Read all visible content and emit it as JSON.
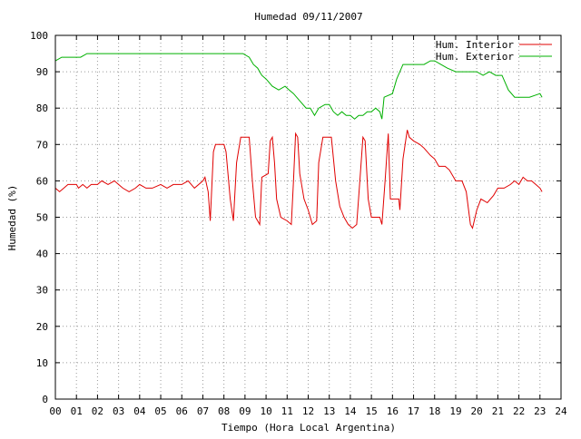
{
  "chart_data": {
    "type": "line",
    "title": "Humedad 09/11/2007",
    "xlabel": "Tiempo (Hora Local Argentina)",
    "ylabel": "Humedad (%)",
    "xlim": [
      0,
      24
    ],
    "ylim": [
      0,
      100
    ],
    "xticks": [
      "00",
      "01",
      "02",
      "03",
      "04",
      "05",
      "06",
      "07",
      "08",
      "09",
      "10",
      "11",
      "12",
      "13",
      "14",
      "15",
      "16",
      "17",
      "18",
      "19",
      "20",
      "21",
      "22",
      "23",
      "24"
    ],
    "yticks": [
      0,
      10,
      20,
      30,
      40,
      50,
      60,
      70,
      80,
      90,
      100
    ],
    "grid": true,
    "legend_position": "top-right",
    "series": [
      {
        "name": "Hum. Interior",
        "color": "#e00000",
        "points": [
          [
            0.0,
            58
          ],
          [
            0.2,
            57
          ],
          [
            0.4,
            58
          ],
          [
            0.6,
            59
          ],
          [
            0.8,
            59
          ],
          [
            1.0,
            59
          ],
          [
            1.1,
            58
          ],
          [
            1.3,
            59
          ],
          [
            1.5,
            58
          ],
          [
            1.7,
            59
          ],
          [
            2.0,
            59
          ],
          [
            2.2,
            60
          ],
          [
            2.5,
            59
          ],
          [
            2.8,
            60
          ],
          [
            3.0,
            59
          ],
          [
            3.2,
            58
          ],
          [
            3.5,
            57
          ],
          [
            3.8,
            58
          ],
          [
            4.0,
            59
          ],
          [
            4.3,
            58
          ],
          [
            4.6,
            58
          ],
          [
            5.0,
            59
          ],
          [
            5.3,
            58
          ],
          [
            5.6,
            59
          ],
          [
            6.0,
            59
          ],
          [
            6.3,
            60
          ],
          [
            6.6,
            58
          ],
          [
            7.0,
            60
          ],
          [
            7.1,
            61
          ],
          [
            7.25,
            57
          ],
          [
            7.35,
            49
          ],
          [
            7.5,
            68
          ],
          [
            7.6,
            70
          ],
          [
            8.0,
            70
          ],
          [
            8.1,
            68
          ],
          [
            8.3,
            55
          ],
          [
            8.45,
            49
          ],
          [
            8.6,
            65
          ],
          [
            8.8,
            72
          ],
          [
            9.2,
            72
          ],
          [
            9.35,
            60
          ],
          [
            9.5,
            50
          ],
          [
            9.7,
            48
          ],
          [
            9.8,
            61
          ],
          [
            10.1,
            62
          ],
          [
            10.2,
            71
          ],
          [
            10.3,
            72
          ],
          [
            10.4,
            65
          ],
          [
            10.5,
            55
          ],
          [
            10.7,
            50
          ],
          [
            11.0,
            49
          ],
          [
            11.2,
            48
          ],
          [
            11.3,
            60
          ],
          [
            11.4,
            73
          ],
          [
            11.5,
            72
          ],
          [
            11.6,
            62
          ],
          [
            11.8,
            55
          ],
          [
            12.0,
            52
          ],
          [
            12.2,
            48
          ],
          [
            12.4,
            49
          ],
          [
            12.5,
            65
          ],
          [
            12.7,
            72
          ],
          [
            13.1,
            72
          ],
          [
            13.3,
            60
          ],
          [
            13.5,
            53
          ],
          [
            13.7,
            50
          ],
          [
            13.9,
            48
          ],
          [
            14.1,
            47
          ],
          [
            14.3,
            48
          ],
          [
            14.45,
            60
          ],
          [
            14.6,
            72
          ],
          [
            14.7,
            71
          ],
          [
            14.85,
            55
          ],
          [
            15.0,
            50
          ],
          [
            15.4,
            50
          ],
          [
            15.5,
            48
          ],
          [
            15.65,
            60
          ],
          [
            15.8,
            73
          ],
          [
            15.9,
            55
          ],
          [
            16.3,
            55
          ],
          [
            16.35,
            52
          ],
          [
            16.5,
            66
          ],
          [
            16.7,
            74
          ],
          [
            16.8,
            72
          ],
          [
            17.0,
            71
          ],
          [
            17.3,
            70
          ],
          [
            17.5,
            69
          ],
          [
            17.8,
            67
          ],
          [
            18.0,
            66
          ],
          [
            18.2,
            64
          ],
          [
            18.5,
            64
          ],
          [
            18.7,
            63
          ],
          [
            19.0,
            60
          ],
          [
            19.3,
            60
          ],
          [
            19.5,
            57
          ],
          [
            19.7,
            48
          ],
          [
            19.8,
            47
          ],
          [
            20.0,
            52
          ],
          [
            20.2,
            55
          ],
          [
            20.5,
            54
          ],
          [
            20.8,
            56
          ],
          [
            21.0,
            58
          ],
          [
            21.3,
            58
          ],
          [
            21.6,
            59
          ],
          [
            21.8,
            60
          ],
          [
            22.0,
            59
          ],
          [
            22.2,
            61
          ],
          [
            22.4,
            60
          ],
          [
            22.6,
            60
          ],
          [
            22.8,
            59
          ],
          [
            23.0,
            58
          ],
          [
            23.1,
            57
          ]
        ]
      },
      {
        "name": "Hum. Exterior",
        "color": "#00b000",
        "points": [
          [
            0.0,
            93
          ],
          [
            0.3,
            94
          ],
          [
            0.6,
            94
          ],
          [
            0.9,
            94
          ],
          [
            1.2,
            94
          ],
          [
            1.5,
            95
          ],
          [
            1.8,
            95
          ],
          [
            2.0,
            95
          ],
          [
            3.0,
            95
          ],
          [
            4.0,
            95
          ],
          [
            5.0,
            95
          ],
          [
            6.0,
            95
          ],
          [
            7.0,
            95
          ],
          [
            8.0,
            95
          ],
          [
            8.9,
            95
          ],
          [
            9.2,
            94
          ],
          [
            9.4,
            92
          ],
          [
            9.6,
            91
          ],
          [
            9.8,
            89
          ],
          [
            10.0,
            88
          ],
          [
            10.3,
            86
          ],
          [
            10.6,
            85
          ],
          [
            10.9,
            86
          ],
          [
            11.1,
            85
          ],
          [
            11.3,
            84
          ],
          [
            11.6,
            82
          ],
          [
            11.9,
            80
          ],
          [
            12.1,
            80
          ],
          [
            12.3,
            78
          ],
          [
            12.5,
            80
          ],
          [
            12.8,
            81
          ],
          [
            13.0,
            81
          ],
          [
            13.2,
            79
          ],
          [
            13.4,
            78
          ],
          [
            13.6,
            79
          ],
          [
            13.8,
            78
          ],
          [
            14.0,
            78
          ],
          [
            14.2,
            77
          ],
          [
            14.4,
            78
          ],
          [
            14.6,
            78
          ],
          [
            14.8,
            79
          ],
          [
            15.0,
            79
          ],
          [
            15.2,
            80
          ],
          [
            15.4,
            79
          ],
          [
            15.5,
            77
          ],
          [
            15.6,
            83
          ],
          [
            16.0,
            84
          ],
          [
            16.2,
            88
          ],
          [
            16.5,
            92
          ],
          [
            17.0,
            92
          ],
          [
            17.5,
            92
          ],
          [
            17.8,
            93
          ],
          [
            18.0,
            93
          ],
          [
            18.3,
            92
          ],
          [
            18.6,
            91
          ],
          [
            19.0,
            90
          ],
          [
            19.5,
            90
          ],
          [
            20.0,
            90
          ],
          [
            20.3,
            89
          ],
          [
            20.6,
            90
          ],
          [
            20.9,
            89
          ],
          [
            21.2,
            89
          ],
          [
            21.5,
            85
          ],
          [
            21.8,
            83
          ],
          [
            22.0,
            83
          ],
          [
            22.5,
            83
          ],
          [
            23.0,
            84
          ],
          [
            23.1,
            83
          ]
        ]
      }
    ]
  }
}
